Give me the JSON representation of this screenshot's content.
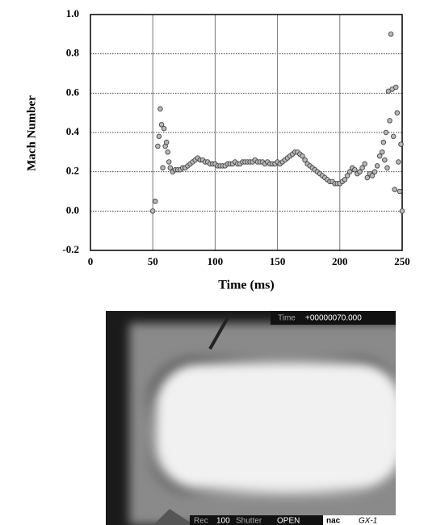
{
  "chart_data": {
    "type": "scatter",
    "xlabel": "Time (ms)",
    "ylabel": "Mach Number",
    "xlim": [
      0,
      250
    ],
    "ylim": [
      -0.2,
      1.0
    ],
    "xticks": [
      0,
      50,
      100,
      150,
      200,
      250
    ],
    "yticks": [
      -0.2,
      {
        "value": 0,
        "label": "0.0"
      },
      0.2,
      0.4,
      0.6,
      0.8,
      {
        "value": 1,
        "label": "1.0"
      }
    ],
    "grid": true,
    "color": "#b8b8b8",
    "x": [
      50,
      52,
      54,
      55,
      56,
      57,
      58,
      59,
      60,
      61,
      62,
      63,
      64,
      66,
      68,
      70,
      72,
      74,
      76,
      78,
      80,
      82,
      84,
      86,
      88,
      90,
      92,
      94,
      96,
      98,
      100,
      102,
      104,
      106,
      108,
      110,
      112,
      114,
      116,
      118,
      120,
      122,
      124,
      126,
      128,
      130,
      132,
      134,
      136,
      138,
      140,
      142,
      144,
      146,
      148,
      150,
      152,
      154,
      156,
      158,
      160,
      162,
      164,
      166,
      168,
      170,
      172,
      174,
      176,
      178,
      180,
      182,
      184,
      186,
      188,
      190,
      192,
      194,
      196,
      198,
      200,
      202,
      204,
      206,
      208,
      210,
      212,
      214,
      216,
      218,
      220,
      222,
      224,
      226,
      228,
      230,
      232,
      234,
      235,
      236,
      237,
      238,
      239,
      240,
      241,
      242,
      243,
      244,
      245,
      246,
      247,
      248,
      249,
      250
    ],
    "values": [
      0,
      0.05,
      0.33,
      0.38,
      0.52,
      0.44,
      0.22,
      0.42,
      0.33,
      0.35,
      0.3,
      0.25,
      0.22,
      0.2,
      0.21,
      0.21,
      0.21,
      0.22,
      0.22,
      0.23,
      0.24,
      0.25,
      0.26,
      0.27,
      0.26,
      0.26,
      0.25,
      0.25,
      0.24,
      0.24,
      0.24,
      0.23,
      0.23,
      0.23,
      0.23,
      0.24,
      0.24,
      0.24,
      0.25,
      0.24,
      0.24,
      0.25,
      0.25,
      0.25,
      0.25,
      0.25,
      0.26,
      0.25,
      0.25,
      0.25,
      0.24,
      0.25,
      0.24,
      0.24,
      0.24,
      0.25,
      0.24,
      0.25,
      0.26,
      0.27,
      0.28,
      0.29,
      0.3,
      0.3,
      0.29,
      0.28,
      0.26,
      0.24,
      0.23,
      0.22,
      0.21,
      0.2,
      0.19,
      0.18,
      0.17,
      0.16,
      0.15,
      0.15,
      0.14,
      0.14,
      0.14,
      0.15,
      0.16,
      0.18,
      0.2,
      0.22,
      0.21,
      0.19,
      0.2,
      0.22,
      0.24,
      0.17,
      0.19,
      0.18,
      0.2,
      0.23,
      0.28,
      0.3,
      0.35,
      0.26,
      0.4,
      0.22,
      0.61,
      0.46,
      0.9,
      0.62,
      0.38,
      0.11,
      0.63,
      0.5,
      0.25,
      0.1,
      0.34,
      0
    ]
  },
  "photo": {
    "time_label": "Time",
    "time_value": "+00000070.000",
    "rec_label": "Rec",
    "rec_value": "100",
    "shutter_label": "Shutter",
    "shutter_value": "OPEN",
    "brand": "nac",
    "model": "GX-1"
  }
}
